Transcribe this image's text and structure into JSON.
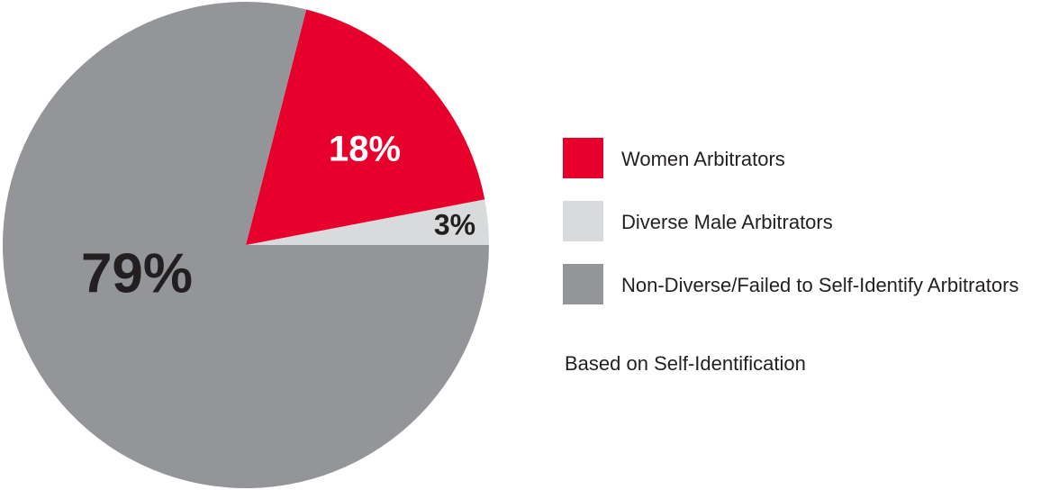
{
  "chart_data": {
    "type": "pie",
    "series": [
      {
        "name": "Women Arbitrators",
        "color": "#e8002d",
        "values": [
          18
        ],
        "value_labels": [
          "18%"
        ]
      },
      {
        "name": "Diverse Male Arbitrators",
        "color": "#d9dadb",
        "values": [
          3
        ],
        "value_labels": [
          "3%"
        ]
      },
      {
        "name": "Non-Diverse/Failed to Self-Identify Arbitrators",
        "color": "#939598",
        "values": [
          79
        ],
        "value_labels": [
          "79%"
        ]
      }
    ],
    "annotation": "Based on Self-Identification"
  }
}
